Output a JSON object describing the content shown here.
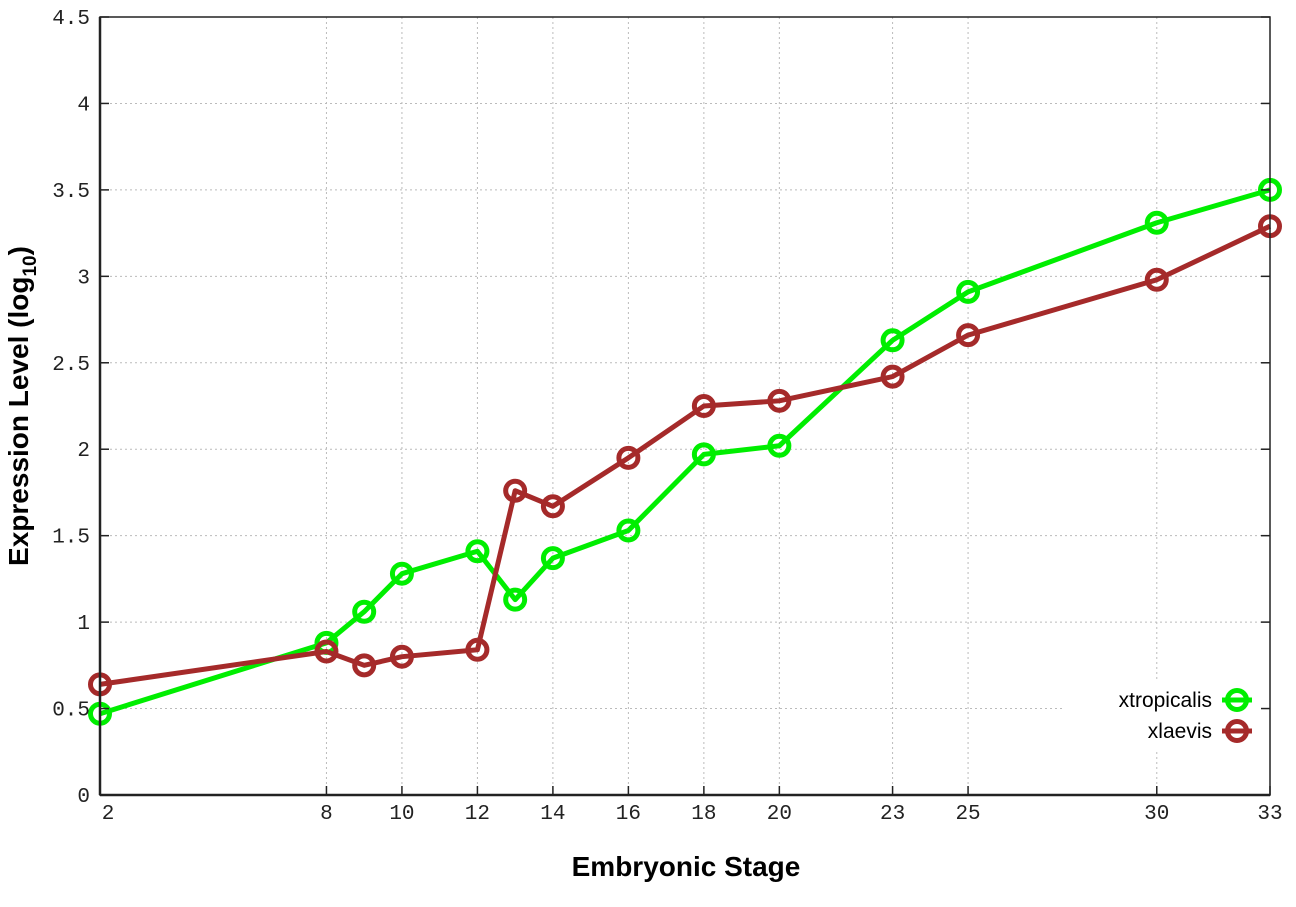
{
  "chart_data": {
    "type": "line",
    "title": "",
    "xlabel": "Embryonic Stage",
    "ylabel": "Expression Level (log",
    "ylabel_subscript": "10",
    "ylabel_suffix": ")",
    "x": [
      2,
      8,
      9,
      10,
      12,
      13,
      14,
      16,
      18,
      20,
      23,
      25,
      30,
      33
    ],
    "xticks": [
      2,
      8,
      10,
      12,
      14,
      16,
      18,
      20,
      23,
      25,
      30,
      33
    ],
    "yticks": [
      "0",
      "0.5",
      "1",
      "1.5",
      "2",
      "2.5",
      "3",
      "3.5",
      "4",
      "4.5"
    ],
    "xlim": [
      2,
      33
    ],
    "ylim": [
      0,
      4.5
    ],
    "grid": true,
    "legend_position": "bottom-right",
    "series": [
      {
        "name": "xtropicalis",
        "color": "#00ee00",
        "values": [
          0.47,
          0.88,
          1.06,
          1.28,
          1.41,
          1.13,
          1.37,
          1.53,
          1.97,
          2.02,
          2.63,
          2.91,
          3.31,
          3.5
        ]
      },
      {
        "name": "xlaevis",
        "color": "#a52a2a",
        "values": [
          0.64,
          0.83,
          0.75,
          0.8,
          0.84,
          1.76,
          1.67,
          1.95,
          2.25,
          2.28,
          2.42,
          2.66,
          2.98,
          3.29
        ]
      }
    ]
  }
}
